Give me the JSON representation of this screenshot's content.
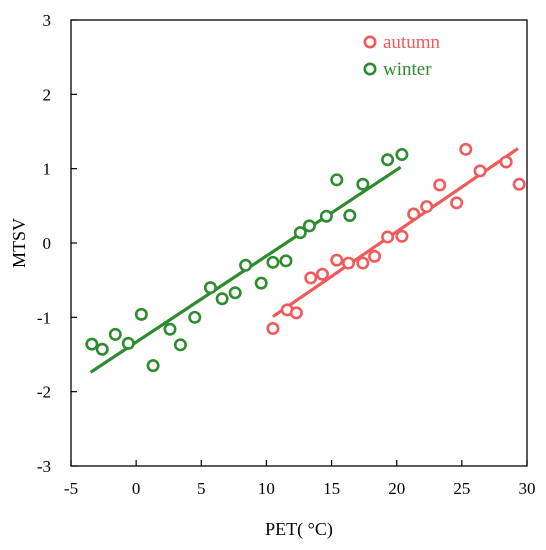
{
  "chart_data": {
    "type": "scatter",
    "xlabel": "PET( °C)",
    "ylabel": "MTSV",
    "xlim": [
      -5,
      30
    ],
    "ylim": [
      -3,
      3
    ],
    "xticks": [
      -5,
      0,
      5,
      10,
      15,
      20,
      25,
      30
    ],
    "yticks": [
      -3,
      -2,
      -1,
      0,
      1,
      2,
      3
    ],
    "grid": false,
    "legend_position": "top-right",
    "series": [
      {
        "name": "autumn",
        "color": "#f05a5a",
        "marker": "open-circle",
        "points": [
          [
            10.5,
            -1.15
          ],
          [
            11.6,
            -0.9
          ],
          [
            12.3,
            -0.94
          ],
          [
            13.4,
            -0.47
          ],
          [
            14.3,
            -0.42
          ],
          [
            15.4,
            -0.23
          ],
          [
            16.3,
            -0.27
          ],
          [
            17.4,
            -0.27
          ],
          [
            18.3,
            -0.18
          ],
          [
            19.3,
            0.08
          ],
          [
            20.4,
            0.09
          ],
          [
            21.3,
            0.39
          ],
          [
            22.3,
            0.49
          ],
          [
            23.3,
            0.78
          ],
          [
            24.6,
            0.54
          ],
          [
            25.3,
            1.26
          ],
          [
            26.4,
            0.97
          ],
          [
            28.4,
            1.09
          ],
          [
            29.4,
            0.79
          ]
        ],
        "trend": {
          "x": [
            10.5,
            29.3
          ],
          "y": [
            -0.99,
            1.27
          ]
        }
      },
      {
        "name": "winter",
        "color": "#2e8b2e",
        "marker": "open-circle",
        "points": [
          [
            -3.4,
            -1.36
          ],
          [
            -2.6,
            -1.43
          ],
          [
            -1.6,
            -1.23
          ],
          [
            -0.6,
            -1.35
          ],
          [
            0.4,
            -0.96
          ],
          [
            1.3,
            -1.65
          ],
          [
            2.6,
            -1.16
          ],
          [
            3.4,
            -1.37
          ],
          [
            4.5,
            -1.0
          ],
          [
            5.7,
            -0.6
          ],
          [
            6.6,
            -0.75
          ],
          [
            7.6,
            -0.67
          ],
          [
            8.4,
            -0.3
          ],
          [
            9.6,
            -0.54
          ],
          [
            10.5,
            -0.26
          ],
          [
            11.5,
            -0.24
          ],
          [
            12.6,
            0.14
          ],
          [
            13.3,
            0.23
          ],
          [
            14.6,
            0.36
          ],
          [
            15.4,
            0.85
          ],
          [
            16.4,
            0.37
          ],
          [
            17.4,
            0.79
          ],
          [
            19.3,
            1.12
          ],
          [
            20.4,
            1.19
          ]
        ],
        "trend": {
          "x": [
            -3.5,
            20.3
          ],
          "y": [
            -1.74,
            1.02
          ]
        }
      }
    ]
  }
}
